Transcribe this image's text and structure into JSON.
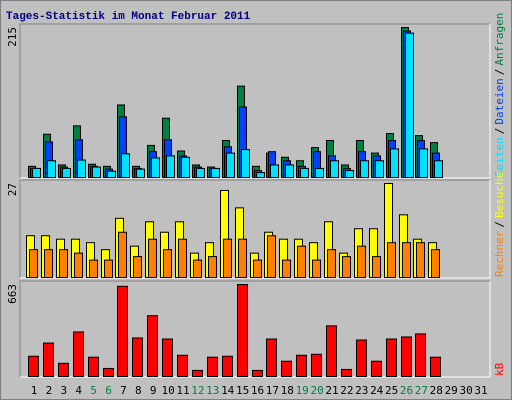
{
  "chart_data": [
    {
      "type": "bar",
      "title": "Tages-Statistik im Monat Februar 2011",
      "legend_separator": "/",
      "ylim": [
        0,
        215
      ],
      "yticks": [
        215
      ],
      "series": [
        {
          "name": "Anfragen",
          "color": "#008040",
          "values": [
            16,
            62,
            18,
            74,
            19,
            16,
            104,
            16,
            46,
            85,
            38,
            18,
            15,
            53,
            131,
            16,
            35,
            29,
            24,
            43,
            53,
            18,
            53,
            35,
            63,
            215,
            60,
            50,
            null,
            null,
            null
          ]
        },
        {
          "name": "Dateien",
          "color": "#0040ff",
          "values": [
            13,
            51,
            15,
            54,
            16,
            12,
            87,
            13,
            37,
            54,
            31,
            15,
            13,
            44,
            101,
            10,
            37,
            24,
            16,
            37,
            31,
            13,
            37,
            31,
            53,
            210,
            53,
            35,
            null,
            null,
            null
          ]
        },
        {
          "name": "Seiten",
          "color": "#00e0ff",
          "values": [
            13,
            24,
            13,
            25,
            15,
            9,
            34,
            12,
            28,
            31,
            29,
            13,
            13,
            35,
            40,
            7,
            18,
            18,
            13,
            13,
            24,
            10,
            24,
            24,
            41,
            207,
            41,
            24,
            null,
            null,
            null
          ]
        }
      ]
    },
    {
      "type": "bar",
      "ylim": [
        0,
        27
      ],
      "yticks": [
        27
      ],
      "series": [
        {
          "name": "Besuche",
          "color": "#ffff00",
          "values": [
            12,
            12,
            11,
            11,
            10,
            8,
            17,
            9,
            16,
            13,
            16,
            7,
            10,
            25,
            20,
            7,
            13,
            11,
            11,
            10,
            16,
            7,
            14,
            14,
            27,
            18,
            11,
            10,
            null,
            null,
            null
          ]
        },
        {
          "name": "Rechner",
          "color": "#ff8000",
          "values": [
            8,
            8,
            8,
            7,
            5,
            5,
            13,
            6,
            11,
            8,
            11,
            5,
            6,
            11,
            11,
            5,
            12,
            5,
            9,
            5,
            8,
            6,
            9,
            6,
            10,
            10,
            10,
            8,
            null,
            null,
            null
          ]
        }
      ]
    },
    {
      "type": "bar",
      "ylim": [
        0,
        663
      ],
      "yticks": [
        663
      ],
      "categories": [
        "1",
        "2",
        "3",
        "4",
        "5",
        "6",
        "7",
        "8",
        "9",
        "10",
        "11",
        "12",
        "13",
        "14",
        "15",
        "16",
        "17",
        "18",
        "19",
        "20",
        "21",
        "22",
        "23",
        "24",
        "25",
        "26",
        "27",
        "28",
        "29",
        "30",
        "31"
      ],
      "category_colors": [
        "#000000",
        "#000000",
        "#000000",
        "#000000",
        "#008040",
        "#008040",
        "#000000",
        "#000000",
        "#000000",
        "#000000",
        "#000000",
        "#008040",
        "#008040",
        "#000000",
        "#000000",
        "#000000",
        "#000000",
        "#000000",
        "#008040",
        "#008040",
        "#000000",
        "#000000",
        "#000000",
        "#000000",
        "#000000",
        "#008040",
        "#008040",
        "#000000",
        "#000000",
        "#000000",
        "#000000"
      ],
      "series": [
        {
          "name": "kB",
          "color": "#ff0000",
          "values": [
            146,
            241,
            95,
            321,
            139,
            58,
            650,
            278,
            438,
            270,
            153,
            44,
            139,
            146,
            663,
            44,
            270,
            110,
            153,
            160,
            365,
            51,
            263,
            110,
            270,
            285,
            307,
            139,
            null,
            null,
            null
          ]
        }
      ]
    }
  ]
}
